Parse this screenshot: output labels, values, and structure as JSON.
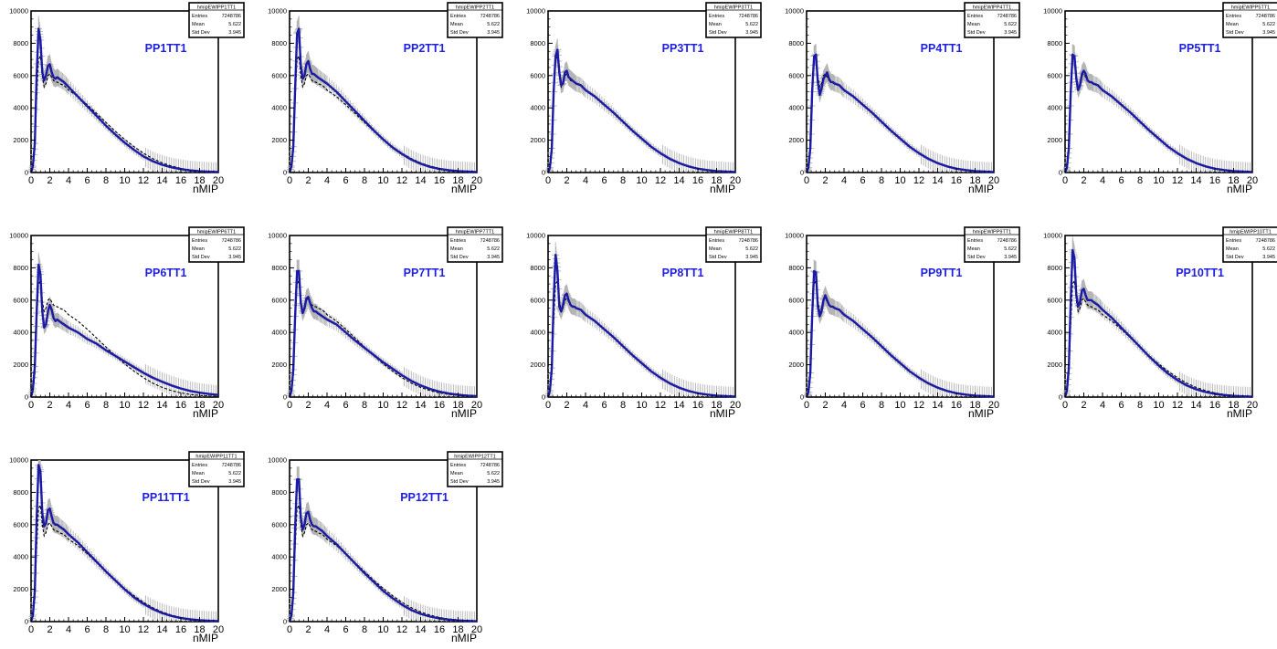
{
  "chart_data": {
    "type": "line",
    "layout": "grid of 12 histogram pads, 5 per row",
    "xlabel": "nMIP",
    "xlim": [
      0,
      20
    ],
    "ylim": [
      0,
      10000
    ],
    "x_ticks": [
      0,
      2,
      4,
      6,
      8,
      10,
      12,
      14,
      16,
      18,
      20
    ],
    "y_ticks": [
      0,
      2000,
      4000,
      6000,
      8000,
      10000
    ],
    "colors": {
      "curve": "#1a1aa6",
      "reference": "#000000",
      "errors": "#b4b4b4",
      "title": "#1f1fe0"
    },
    "stats_labels": {
      "entries": "Entries",
      "mean": "Mean",
      "std": "Std Dev"
    },
    "x": [
      0,
      0.2,
      0.4,
      0.6,
      0.8,
      1.0,
      1.2,
      1.4,
      1.6,
      1.8,
      2.0,
      2.2,
      2.4,
      2.6,
      2.8,
      3.0,
      3.5,
      4,
      5,
      6,
      7,
      8,
      9,
      10,
      11,
      12,
      13,
      14,
      15,
      16,
      17,
      18,
      19,
      20
    ],
    "pads": [
      {
        "title": "PP1TT1",
        "stats_name": "hmipEWIPP1TT1",
        "entries": "7248786",
        "mean": "5.622",
        "std": "3.945",
        "values": [
          0,
          400,
          1800,
          6000,
          8900,
          8200,
          6200,
          5700,
          6000,
          6600,
          6700,
          6200,
          5900,
          5800,
          5900,
          5800,
          5600,
          5300,
          4700,
          4100,
          3500,
          2900,
          2350,
          1850,
          1400,
          1000,
          700,
          480,
          320,
          210,
          130,
          80,
          50,
          30
        ]
      },
      {
        "title": "PP2TT1",
        "stats_name": "hmipEWIPP2TT1",
        "entries": "7248786",
        "mean": "5.622",
        "std": "3.945",
        "values": [
          0,
          400,
          1600,
          5200,
          8600,
          8900,
          6600,
          5800,
          6000,
          6700,
          6900,
          6400,
          6100,
          6100,
          6000,
          5900,
          5700,
          5500,
          5000,
          4400,
          3800,
          3200,
          2600,
          2050,
          1550,
          1150,
          800,
          540,
          350,
          220,
          140,
          90,
          55,
          30
        ]
      },
      {
        "title": "PP3TT1",
        "stats_name": "hmipEWIPP3TT1",
        "entries": "7248786",
        "mean": "5.622",
        "std": "3.945",
        "values": [
          0,
          300,
          1500,
          5000,
          7200,
          7600,
          6200,
          5400,
          5500,
          6200,
          6300,
          5900,
          5800,
          5700,
          5600,
          5500,
          5400,
          5100,
          4700,
          4200,
          3700,
          3150,
          2600,
          2100,
          1600,
          1200,
          850,
          580,
          380,
          240,
          150,
          90,
          55,
          30
        ]
      },
      {
        "title": "PP4TT1",
        "stats_name": "hmipEWIPP4TT1",
        "entries": "7248786",
        "mean": "5.622",
        "std": "3.945",
        "values": [
          0,
          300,
          1500,
          5000,
          7200,
          7300,
          5600,
          4800,
          5200,
          5800,
          6000,
          6200,
          5800,
          5600,
          5600,
          5500,
          5400,
          5100,
          4700,
          4200,
          3700,
          3150,
          2600,
          2100,
          1600,
          1200,
          850,
          580,
          380,
          240,
          150,
          90,
          55,
          30
        ]
      },
      {
        "title": "PP5TT1",
        "stats_name": "hmipEWIPP5TT1",
        "entries": "7248786",
        "mean": "5.622",
        "std": "3.945",
        "values": [
          0,
          300,
          1500,
          5000,
          7300,
          7200,
          5800,
          5100,
          5400,
          6100,
          6300,
          6100,
          5700,
          5600,
          5600,
          5500,
          5400,
          5100,
          4700,
          4200,
          3700,
          3150,
          2600,
          2100,
          1600,
          1200,
          850,
          580,
          380,
          240,
          150,
          90,
          55,
          30
        ]
      },
      {
        "title": "PP6TT1",
        "stats_name": "hmipEWIPP6TT1",
        "entries": "7248786",
        "mean": "5.622",
        "std": "3.945",
        "values": [
          0,
          500,
          1900,
          5200,
          8200,
          7600,
          5300,
          4300,
          4500,
          5300,
          5700,
          5400,
          4900,
          4700,
          4800,
          4700,
          4500,
          4300,
          4000,
          3600,
          3300,
          2900,
          2550,
          2200,
          1850,
          1500,
          1200,
          950,
          720,
          530,
          380,
          270,
          190,
          130
        ]
      },
      {
        "title": "PP7TT1",
        "stats_name": "hmipEWIPP7TT1",
        "entries": "7248786",
        "mean": "5.622",
        "std": "3.945",
        "values": [
          0,
          400,
          1700,
          5000,
          7800,
          7800,
          5800,
          5200,
          5500,
          6100,
          6200,
          5800,
          5500,
          5300,
          5300,
          5200,
          5000,
          4800,
          4500,
          4000,
          3500,
          3050,
          2600,
          2150,
          1750,
          1350,
          1000,
          720,
          500,
          340,
          220,
          140,
          90,
          55
        ]
      },
      {
        "title": "PP8TT1",
        "stats_name": "hmipEWIPP8TT1",
        "entries": "7248786",
        "mean": "5.622",
        "std": "3.945",
        "values": [
          0,
          400,
          1800,
          6000,
          8800,
          7800,
          5600,
          5300,
          5700,
          6300,
          6400,
          6000,
          5700,
          5600,
          5600,
          5500,
          5400,
          5100,
          4700,
          4200,
          3700,
          3150,
          2600,
          2100,
          1600,
          1200,
          850,
          580,
          380,
          240,
          150,
          90,
          55,
          30
        ]
      },
      {
        "title": "PP9TT1",
        "stats_name": "hmipEWIPP9TT1",
        "entries": "7248786",
        "mean": "5.622",
        "std": "3.945",
        "values": [
          0,
          300,
          1500,
          5000,
          7800,
          7700,
          5600,
          5000,
          5300,
          6000,
          6300,
          6000,
          5700,
          5600,
          5600,
          5500,
          5400,
          5100,
          4700,
          4200,
          3700,
          3150,
          2600,
          2100,
          1600,
          1200,
          850,
          580,
          380,
          240,
          150,
          90,
          55,
          30
        ]
      },
      {
        "title": "PP10TT1",
        "stats_name": "hmipEWIPP10TT1",
        "entries": "7248786",
        "mean": "5.622",
        "std": "3.945",
        "values": [
          0,
          400,
          1800,
          6000,
          9100,
          8600,
          6300,
          5600,
          5900,
          6600,
          6700,
          6300,
          6000,
          6000,
          6000,
          5900,
          5700,
          5400,
          4900,
          4300,
          3700,
          3100,
          2500,
          1950,
          1450,
          1050,
          720,
          480,
          310,
          200,
          125,
          75,
          45,
          25
        ]
      },
      {
        "title": "PP11TT1",
        "stats_name": "hmipEWIPP11TT1",
        "entries": "7248786",
        "mean": "5.622",
        "std": "3.945",
        "values": [
          0,
          400,
          1900,
          6300,
          9700,
          9300,
          6700,
          5900,
          6100,
          6900,
          7000,
          6500,
          6100,
          6000,
          6000,
          5900,
          5700,
          5400,
          4900,
          4300,
          3700,
          3100,
          2550,
          2000,
          1500,
          1100,
          780,
          530,
          350,
          220,
          140,
          85,
          50,
          30
        ]
      },
      {
        "title": "PP12TT1",
        "stats_name": "hmipEWIPP12TT1",
        "entries": "7248786",
        "mean": "5.622",
        "std": "3.945",
        "values": [
          0,
          400,
          1800,
          5800,
          8800,
          8800,
          6400,
          5700,
          6000,
          6700,
          6800,
          6300,
          6000,
          5900,
          5900,
          5800,
          5600,
          5300,
          4800,
          4200,
          3600,
          3000,
          2450,
          1900,
          1450,
          1050,
          720,
          480,
          310,
          200,
          125,
          75,
          45,
          25
        ]
      }
    ],
    "reference_values": [
      0,
      300,
      1400,
      4500,
      7000,
      7200,
      6000,
      5300,
      5500,
      6000,
      6100,
      5900,
      5700,
      5600,
      5600,
      5500,
      5400,
      5100,
      4700,
      4200,
      3650,
      3100,
      2550,
      2050,
      1600,
      1200,
      860,
      600,
      400,
      260,
      165,
      100,
      60,
      35
    ]
  }
}
